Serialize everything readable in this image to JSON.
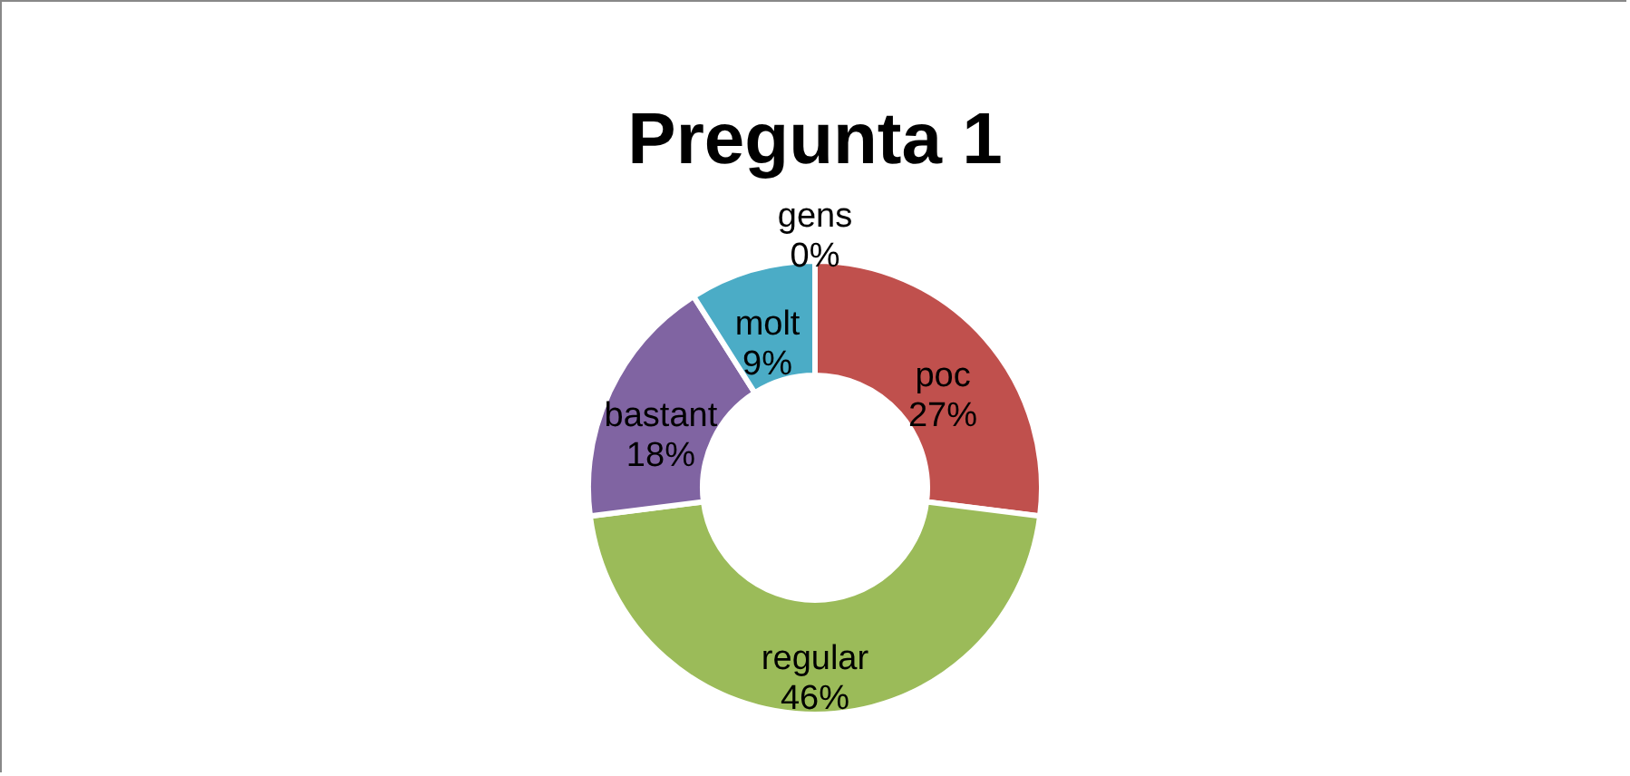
{
  "chart_data": {
    "type": "donut",
    "title": "Pregunta 1",
    "categories": [
      "gens",
      "poc",
      "regular",
      "bastant",
      "molt"
    ],
    "values": [
      0,
      27,
      46,
      18,
      9
    ],
    "value_labels": [
      "0%",
      "27%",
      "46%",
      "18%",
      "9%"
    ],
    "colors": [
      "#4f81bd",
      "#c0504d",
      "#9bbb59",
      "#8064a2",
      "#4bacc6"
    ],
    "legend": false
  }
}
